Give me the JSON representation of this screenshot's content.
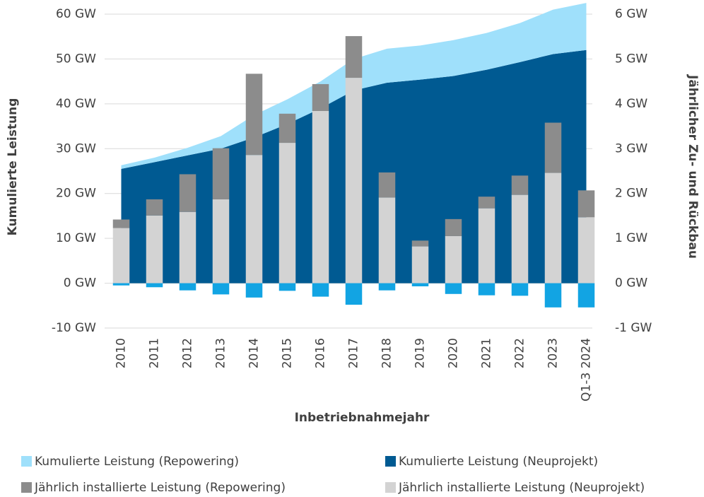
{
  "chart_data": {
    "type": "combo",
    "categories": [
      "2010",
      "2011",
      "2012",
      "2013",
      "2014",
      "2015",
      "2016",
      "2017",
      "2018",
      "2019",
      "2020",
      "2021",
      "2022",
      "2023",
      "Q1-3 2024"
    ],
    "x_label": "Inbetriebnahmejahr",
    "y_label": "Kumulierte Leistung",
    "y2_label": "Jährlicher Zu- und Rückbau",
    "ylim": [
      -10,
      60
    ],
    "yticks": [
      {
        "value": -10,
        "label": "-10 GW"
      },
      {
        "value": 0,
        "label": "0 GW"
      },
      {
        "value": 10,
        "label": "10 GW"
      },
      {
        "value": 20,
        "label": "20 GW"
      },
      {
        "value": 30,
        "label": "30 GW"
      },
      {
        "value": 40,
        "label": "40 GW"
      },
      {
        "value": 50,
        "label": "50 GW"
      },
      {
        "value": 60,
        "label": "60 GW"
      }
    ],
    "y2lim": [
      -1,
      6
    ],
    "y2ticks": [
      {
        "value": -1,
        "label": "-1 GW"
      },
      {
        "value": 0,
        "label": "0 GW"
      },
      {
        "value": 1,
        "label": "1 GW"
      },
      {
        "value": 2,
        "label": "2 GW"
      },
      {
        "value": 3,
        "label": "3 GW"
      },
      {
        "value": 4,
        "label": "4 GW"
      },
      {
        "value": 5,
        "label": "5 GW"
      },
      {
        "value": 6,
        "label": "6 GW"
      }
    ],
    "grid": true,
    "legend": "bottom",
    "series": [
      {
        "name": "Kumulierte Leistung (Repowering)",
        "type": "area",
        "stack_order": 1,
        "color": "#9fe0fb",
        "values": [
          0.8,
          1,
          1.7,
          2.8,
          5,
          5.5,
          6,
          7,
          7.6,
          7.6,
          8,
          8.2,
          8.7,
          9.9,
          10.5
        ]
      },
      {
        "name": "Kumulierte Leistung (Neuprojekt)",
        "type": "area",
        "stack_order": 0,
        "color": "#005a92",
        "values": [
          25.5,
          27,
          28.5,
          30,
          32.5,
          35.5,
          39,
          43,
          44.7,
          45.4,
          46.2,
          47.6,
          49.3,
          51.1,
          52
        ]
      },
      {
        "name": "Jährlich installierte Leistung (Repowering)",
        "type": "bar",
        "axis": "y2",
        "stack_order": 1,
        "color": "#8c8c8c",
        "values": [
          0.19,
          0.36,
          0.84,
          1.14,
          1.81,
          0.65,
          0.6,
          0.93,
          0.56,
          0.13,
          0.38,
          0.26,
          0.43,
          1.12,
          0.6
        ]
      },
      {
        "name": "Jährlich installierte Leistung (Neuprojekt)",
        "type": "bar",
        "axis": "y2",
        "stack_order": 0,
        "color": "#d3d3d3",
        "values": [
          1.23,
          1.51,
          1.59,
          1.87,
          2.86,
          3.13,
          3.84,
          4.58,
          1.91,
          0.82,
          1.05,
          1.67,
          1.97,
          2.46,
          1.47
        ]
      },
      {
        "type": "bar",
        "axis": "y2",
        "stack_order": 0,
        "color": "#12a4e3",
        "values": [
          -0.05,
          -0.09,
          -0.16,
          -0.25,
          -0.32,
          -0.17,
          -0.3,
          -0.48,
          -0.16,
          -0.07,
          -0.24,
          -0.27,
          -0.28,
          -0.54,
          -0.54
        ]
      }
    ]
  }
}
